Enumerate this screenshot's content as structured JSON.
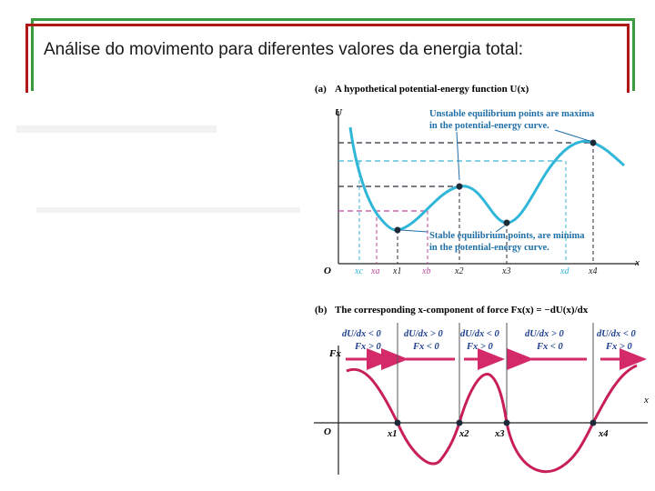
{
  "slide": {
    "title": "Análise do movimento para diferentes valores da energia total:"
  },
  "panel_a": {
    "heading_label": "(a)",
    "heading_text": "A hypothetical potential-energy function U(x)",
    "y_axis": "U",
    "x_axis": "x",
    "origin": "O",
    "unstable_note_1": "Unstable equilibrium points are maxima",
    "unstable_note_2": "in the potential-energy curve.",
    "stable_note_1": "Stable equilibrium points, are minima",
    "stable_note_2": "in the potential-energy curve.",
    "ticks": [
      "xc",
      "xa",
      "x1",
      "xb",
      "x2",
      "x3",
      "xd",
      "x4"
    ]
  },
  "panel_b": {
    "heading_label": "(b)",
    "heading_text": "The corresponding x-component of force Fx(x) = −dU(x)/dx",
    "y_axis": "Fx",
    "x_axis": "x",
    "origin": "O",
    "regions": [
      {
        "slope": "dU/dx < 0",
        "force": "Fx > 0"
      },
      {
        "slope": "dU/dx > 0",
        "force": "Fx < 0"
      },
      {
        "slope": "dU/dx < 0",
        "force": "Fx > 0"
      },
      {
        "slope": "dU/dx > 0",
        "force": "Fx < 0"
      },
      {
        "slope": "dU/dx < 0",
        "force": "Fx > 0"
      }
    ],
    "zero_labels": [
      "x1",
      "x2",
      "x3",
      "x4"
    ]
  },
  "colors": {
    "potential_curve": "#2fb6d8",
    "force_curve": "#c81e5a",
    "arrow": "#d42a6a",
    "dashed_dark": "#2a2a3a",
    "dashed_cyan": "#39b6d6",
    "dashed_magenta": "#c04a9a",
    "frame_green": "#3c9a3c",
    "frame_red": "#b01818"
  }
}
